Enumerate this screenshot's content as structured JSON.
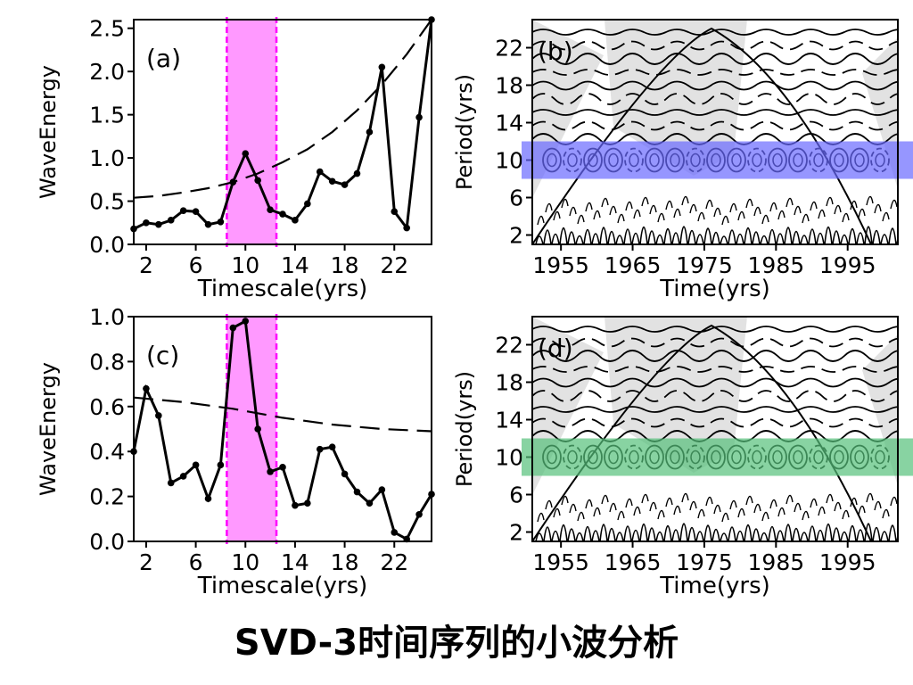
{
  "caption": "SVD-3时间序列的小波分析",
  "colors": {
    "highlight_pink": "#ff99ff",
    "highlight_pink_border": "#ff00ff",
    "highlight_blue": "#6a6aff",
    "highlight_green": "#55c07a",
    "shade": "#e2e2e2"
  },
  "chart_data": [
    {
      "panel": "(a)",
      "type": "line",
      "xlabel": "Timescale(yrs)",
      "ylabel": "WaveEnergy",
      "xlim": [
        1,
        25
      ],
      "ylim": [
        0,
        2.6
      ],
      "xticks": [
        2,
        6,
        10,
        14,
        18,
        22
      ],
      "xtick_labels": [
        "2",
        "6",
        "10",
        "14",
        "18",
        "22"
      ],
      "yticks": [
        0,
        0.5,
        1.0,
        1.5,
        2.0,
        2.5
      ],
      "ytick_labels": [
        "0.0",
        "0.5",
        "1.0",
        "1.5",
        "2.0",
        "2.5"
      ],
      "highlight_x": [
        8.5,
        12.5
      ],
      "series": [
        {
          "style": "solid-dots",
          "x": [
            1,
            2,
            3,
            4,
            5,
            6,
            7,
            8,
            9,
            10,
            11,
            12,
            13,
            14,
            15,
            16,
            17,
            18,
            19,
            20,
            21,
            22,
            23,
            24,
            25
          ],
          "y": [
            0.18,
            0.25,
            0.23,
            0.28,
            0.39,
            0.38,
            0.23,
            0.26,
            0.72,
            1.05,
            0.74,
            0.4,
            0.35,
            0.28,
            0.47,
            0.84,
            0.73,
            0.69,
            0.82,
            1.3,
            2.05,
            0.38,
            0.19,
            1.47,
            2.6
          ]
        },
        {
          "style": "dashed",
          "x": [
            1,
            3,
            5,
            7,
            9,
            11,
            13,
            15,
            17,
            19,
            21,
            23,
            25
          ],
          "y": [
            0.54,
            0.56,
            0.6,
            0.65,
            0.72,
            0.82,
            0.95,
            1.1,
            1.3,
            1.55,
            1.85,
            2.2,
            2.6
          ]
        }
      ]
    },
    {
      "panel": "(c)",
      "type": "line",
      "xlabel": "Timescale(yrs)",
      "ylabel": "WaveEnergy",
      "xlim": [
        1,
        25
      ],
      "ylim": [
        0,
        1.0
      ],
      "xticks": [
        2,
        6,
        10,
        14,
        18,
        22
      ],
      "xtick_labels": [
        "2",
        "6",
        "10",
        "14",
        "18",
        "22"
      ],
      "yticks": [
        0,
        0.2,
        0.4,
        0.6,
        0.8,
        1.0
      ],
      "ytick_labels": [
        "0.0",
        "0.2",
        "0.4",
        "0.6",
        "0.8",
        "1.0"
      ],
      "highlight_x": [
        8.5,
        12.5
      ],
      "series": [
        {
          "style": "solid-dots",
          "x": [
            1,
            2,
            3,
            4,
            5,
            6,
            7,
            8,
            9,
            10,
            11,
            12,
            13,
            14,
            15,
            16,
            17,
            18,
            19,
            20,
            21,
            22,
            23,
            24,
            25
          ],
          "y": [
            0.4,
            0.68,
            0.56,
            0.26,
            0.29,
            0.34,
            0.19,
            0.34,
            0.95,
            0.98,
            0.5,
            0.31,
            0.33,
            0.16,
            0.17,
            0.41,
            0.42,
            0.3,
            0.22,
            0.17,
            0.23,
            0.04,
            0.01,
            0.12,
            0.21
          ]
        },
        {
          "style": "dashed",
          "x": [
            1,
            5,
            9,
            13,
            17,
            21,
            25
          ],
          "y": [
            0.64,
            0.62,
            0.59,
            0.55,
            0.52,
            0.5,
            0.49
          ]
        }
      ]
    },
    {
      "panel": "(b)",
      "type": "contour",
      "xlabel": "Time(yrs)",
      "ylabel": "Period(yrs)",
      "xlim": [
        1951,
        2002
      ],
      "ylim": [
        1,
        25
      ],
      "xticks": [
        1955,
        1965,
        1975,
        1985,
        1995
      ],
      "xtick_labels": [
        "1955",
        "1965",
        "1975",
        "1985",
        "1995"
      ],
      "yticks": [
        2,
        6,
        10,
        14,
        18,
        22
      ],
      "ytick_labels": [
        "2",
        "6",
        "10",
        "14",
        "18",
        "22"
      ],
      "highlight_period": [
        8,
        12
      ],
      "cone_peak_year": 1976
    },
    {
      "panel": "(d)",
      "type": "contour",
      "xlabel": "Time(yrs)",
      "ylabel": "Period(yrs)",
      "xlim": [
        1951,
        2002
      ],
      "ylim": [
        1,
        25
      ],
      "xticks": [
        1955,
        1965,
        1975,
        1985,
        1995
      ],
      "xtick_labels": [
        "1955",
        "1965",
        "1975",
        "1985",
        "1995"
      ],
      "yticks": [
        2,
        6,
        10,
        14,
        18,
        22
      ],
      "ytick_labels": [
        "2",
        "6",
        "10",
        "14",
        "18",
        "22"
      ],
      "highlight_period": [
        8,
        12
      ],
      "cone_peak_year": 1976
    }
  ]
}
